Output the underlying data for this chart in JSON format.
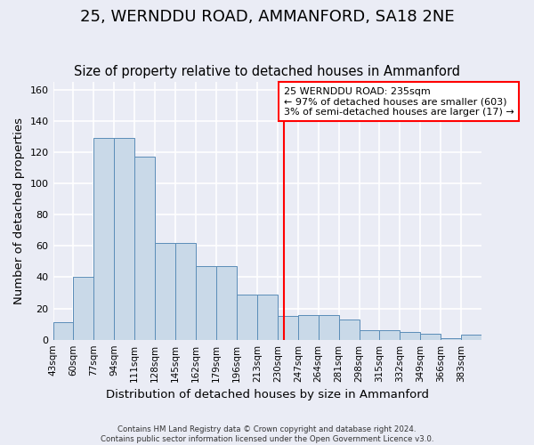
{
  "title": "25, WERNDDU ROAD, AMMANFORD, SA18 2NE",
  "subtitle": "Size of property relative to detached houses in Ammanford",
  "xlabel": "Distribution of detached houses by size in Ammanford",
  "ylabel": "Number of detached properties",
  "footer_lines": [
    "Contains HM Land Registry data © Crown copyright and database right 2024.",
    "Contains public sector information licensed under the Open Government Licence v3.0."
  ],
  "bin_labels": [
    "43sqm",
    "60sqm",
    "77sqm",
    "94sqm",
    "111sqm",
    "128sqm",
    "145sqm",
    "162sqm",
    "179sqm",
    "196sqm",
    "213sqm",
    "230sqm",
    "247sqm",
    "264sqm",
    "281sqm",
    "298sqm",
    "315sqm",
    "332sqm",
    "349sqm",
    "366sqm",
    "383sqm"
  ],
  "bar_values": [
    11,
    40,
    129,
    129,
    117,
    62,
    62,
    47,
    47,
    29,
    29,
    15,
    16,
    16,
    13,
    6,
    6,
    5,
    4,
    1,
    3
  ],
  "bin_edges": [
    43,
    60,
    77,
    94,
    111,
    128,
    145,
    162,
    179,
    196,
    213,
    230,
    247,
    264,
    281,
    298,
    315,
    332,
    349,
    366,
    383,
    400
  ],
  "bar_facecolor": "#c9d9e8",
  "bar_edgecolor": "#5b8db8",
  "vline_x": 235,
  "vline_color": "red",
  "annotation_title": "25 WERNDDU ROAD: 235sqm",
  "annotation_line1": "← 97% of detached houses are smaller (603)",
  "annotation_line2": "3% of semi-detached houses are larger (17) →",
  "ylim": [
    0,
    165
  ],
  "background_color": "#eaecf5",
  "plot_bg_color": "#eaecf5",
  "grid_color": "white",
  "title_fontsize": 13,
  "subtitle_fontsize": 10.5,
  "axis_label_fontsize": 9.5,
  "tick_fontsize": 7.5
}
